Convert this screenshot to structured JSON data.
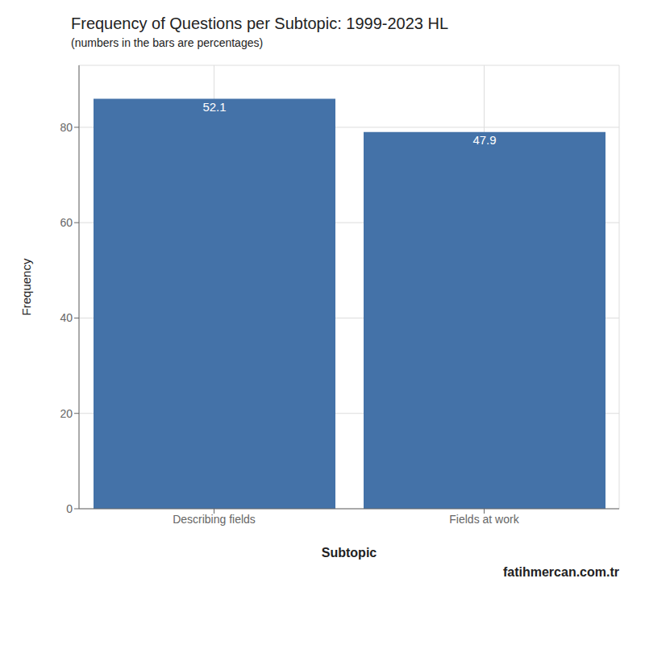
{
  "chart_data": {
    "type": "bar",
    "title": "Frequency of Questions per Subtopic: 1999-2023 HL",
    "subtitle": "(numbers in the bars are percentages)",
    "categories": [
      "Describing fields",
      "Fields at work"
    ],
    "values": [
      86,
      79
    ],
    "percentages": [
      52.1,
      47.9
    ],
    "color": "#4472a8",
    "ylabel": "Frequency",
    "xlabel": "Subtopic",
    "annotations": [
      "fatihmercan.com.tr"
    ],
    "ylim": [
      0,
      93
    ],
    "yticks": [
      0,
      20,
      40,
      60,
      80
    ],
    "grid": true
  }
}
